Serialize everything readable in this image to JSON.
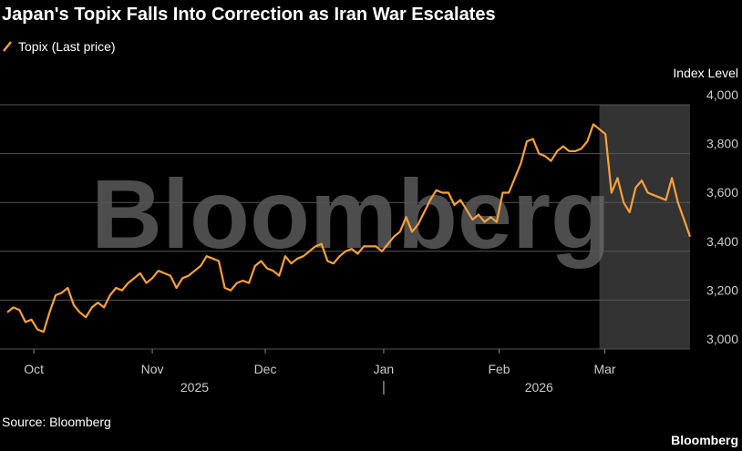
{
  "chart_data": {
    "type": "line",
    "title": "Japan's Topix Falls Into Correction as Iran War Escalates",
    "y_axis_label": "Index Level",
    "source": "Source: Bloomberg",
    "brand": "Bloomberg",
    "watermark": "Bloomberg",
    "series": [
      {
        "name": "Topix (Last price)",
        "color": "#f7a13c",
        "values": [
          3150,
          3170,
          3160,
          3110,
          3120,
          3080,
          3070,
          3150,
          3220,
          3230,
          3250,
          3180,
          3150,
          3130,
          3170,
          3190,
          3170,
          3220,
          3250,
          3240,
          3270,
          3290,
          3310,
          3270,
          3290,
          3320,
          3310,
          3300,
          3250,
          3290,
          3300,
          3320,
          3340,
          3380,
          3370,
          3360,
          3250,
          3240,
          3270,
          3280,
          3270,
          3340,
          3360,
          3330,
          3320,
          3300,
          3380,
          3350,
          3370,
          3380,
          3400,
          3420,
          3430,
          3360,
          3350,
          3380,
          3400,
          3410,
          3390,
          3420,
          3420,
          3420,
          3400,
          3430,
          3460,
          3480,
          3540,
          3480,
          3510,
          3560,
          3610,
          3650,
          3640,
          3640,
          3590,
          3610,
          3570,
          3530,
          3550,
          3520,
          3540,
          3520,
          3640,
          3640,
          3700,
          3760,
          3850,
          3860,
          3800,
          3790,
          3770,
          3810,
          3830,
          3810,
          3810,
          3820,
          3850,
          3920,
          3900,
          3880,
          3640,
          3700,
          3600,
          3560,
          3660,
          3690,
          3640,
          3630,
          3620,
          3610,
          3700,
          3600,
          3530,
          3460
        ]
      }
    ],
    "xlim": [
      0,
      113
    ],
    "xticks": [
      {
        "value": 4.4,
        "label": "Oct"
      },
      {
        "value": 24,
        "label": "Nov"
      },
      {
        "value": 42.7,
        "label": "Dec"
      },
      {
        "value": 62.3,
        "label": "Jan"
      },
      {
        "value": 81.4,
        "label": "Feb"
      },
      {
        "value": 98.9,
        "label": "Mar"
      }
    ],
    "year_labels": [
      {
        "value": 31,
        "label": "2025"
      },
      {
        "value": 88,
        "label": "2026"
      }
    ],
    "year_divider": 62.3,
    "shade": [
      98,
      113
    ],
    "ylim": [
      3000,
      4000
    ],
    "yticks": [
      {
        "value": 3000,
        "label": "3,000"
      },
      {
        "value": 3200,
        "label": "3,200"
      },
      {
        "value": 3400,
        "label": "3,400"
      },
      {
        "value": 3600,
        "label": "3,600"
      },
      {
        "value": 3800,
        "label": "3,800"
      },
      {
        "value": 4000,
        "label": "4,000"
      }
    ],
    "grid": true
  }
}
